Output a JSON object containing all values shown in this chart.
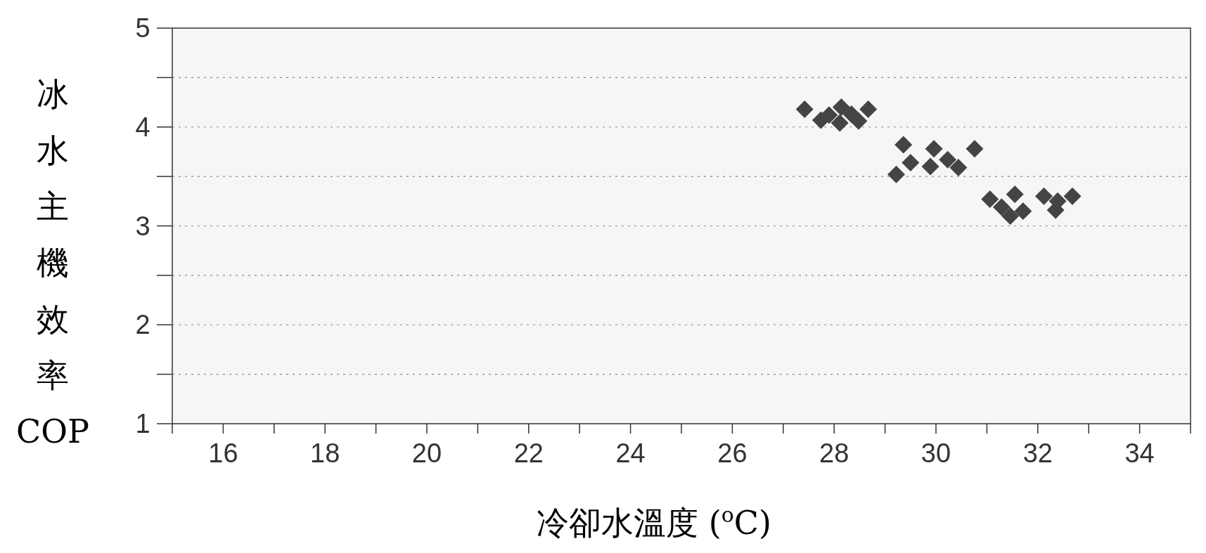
{
  "chart_data": {
    "type": "scatter",
    "xlabel": "冷卻水溫度 ($^{o}$C)",
    "ylabel": "冰水主機效率COP",
    "marker": "diamond",
    "grid": "y",
    "xlim": [
      15,
      35
    ],
    "ylim": [
      1,
      5
    ],
    "xticks": [
      {
        "value": 15,
        "label": null
      },
      16,
      {
        "value": 17,
        "label": null
      },
      18,
      {
        "value": 19,
        "label": null
      },
      20,
      {
        "value": 21,
        "label": null
      },
      22,
      {
        "value": 23,
        "label": null
      },
      24,
      {
        "value": 25,
        "label": null
      },
      26,
      {
        "value": 27,
        "label": null
      },
      28,
      {
        "value": 29,
        "label": null
      },
      30,
      {
        "value": 31,
        "label": null
      },
      32,
      {
        "value": 33,
        "label": null
      },
      34,
      {
        "value": 35,
        "label": null
      }
    ],
    "yticks": [
      1,
      {
        "value": 1.5,
        "label": null
      },
      2,
      {
        "value": 2.5,
        "label": null
      },
      3,
      {
        "value": 3.5,
        "label": null
      },
      4,
      {
        "value": 4.5,
        "label": null
      },
      5
    ],
    "series": [
      {
        "color": "#444444",
        "x": [
          27.42,
          27.74,
          28.14,
          28.11,
          27.9,
          28.48,
          28.67,
          28.34,
          29.36,
          29.5,
          29.22,
          29.89,
          29.96,
          30.23,
          30.44,
          30.76,
          31.06,
          31.29,
          31.55,
          31.46,
          31.71,
          32.12,
          32.35,
          32.39,
          32.68
        ],
        "values": [
          4.18,
          4.07,
          4.2,
          4.04,
          4.12,
          4.06,
          4.18,
          4.13,
          3.82,
          3.64,
          3.52,
          3.6,
          3.78,
          3.67,
          3.59,
          3.78,
          3.27,
          3.19,
          3.32,
          3.1,
          3.15,
          3.3,
          3.16,
          3.25,
          3.3
        ]
      }
    ]
  }
}
